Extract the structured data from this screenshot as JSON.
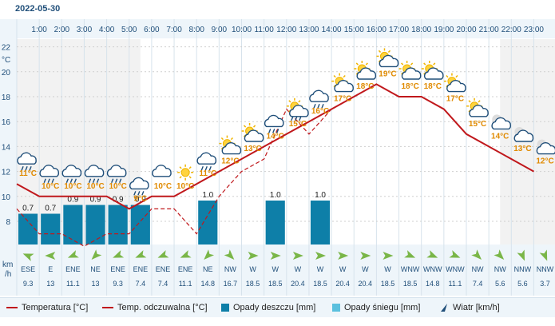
{
  "header": {
    "date": "2022-05-30"
  },
  "units": {
    "temp": "°C",
    "wind": "km\n/h"
  },
  "hours": [
    "1:00",
    "2:00",
    "3:00",
    "4:00",
    "5:00",
    "6:00",
    "7:00",
    "8:00",
    "9:00",
    "10:00",
    "11:00",
    "12:00",
    "13:00",
    "14:00",
    "15:00",
    "16:00",
    "17:00",
    "18:00",
    "19:00",
    "20:00",
    "21:00",
    "22:00",
    "23:00"
  ],
  "chart_data": {
    "type": "line",
    "x_hours": [
      0,
      1,
      2,
      3,
      4,
      5,
      6,
      7,
      8,
      9,
      10,
      11,
      12,
      13,
      14,
      15,
      16,
      17,
      18,
      19,
      20,
      21,
      22,
      23
    ],
    "y_ticks": [
      8,
      10,
      12,
      14,
      16,
      18,
      20,
      22
    ],
    "ylim": [
      6,
      24
    ],
    "series": [
      {
        "name": "Temperatura [°C]",
        "color": "#c0181c",
        "style": "solid",
        "values": [
          11,
          10,
          10,
          10,
          10,
          9,
          10,
          10,
          11,
          12,
          13,
          14,
          15,
          16,
          17,
          18,
          19,
          18,
          18,
          17,
          15,
          14,
          13,
          12
        ]
      },
      {
        "name": "Temp. odczuwalna [°C]",
        "color": "#c0181c",
        "style": "dashed",
        "values": [
          9,
          7,
          7,
          6,
          7,
          7,
          9,
          9,
          7,
          10,
          12,
          13,
          17,
          15,
          17,
          18,
          19,
          18,
          18,
          17,
          15,
          14,
          13,
          12
        ]
      },
      {
        "name": "Opady deszczu [mm]",
        "color": "#0e7fa8",
        "type": "bar",
        "values": [
          0.7,
          0.7,
          0.9,
          0.9,
          0.9,
          0.9,
          0,
          0,
          1.0,
          0,
          0,
          1.0,
          0,
          1.0,
          0,
          0,
          0,
          0,
          0,
          0,
          0,
          0,
          0,
          0
        ]
      },
      {
        "name": "Opady śniegu [mm]",
        "color": "#5bc0de",
        "type": "bar",
        "values": [
          0,
          0,
          0,
          0,
          0,
          0,
          0,
          0,
          0,
          0,
          0,
          0,
          0,
          0,
          0,
          0,
          0,
          0,
          0,
          0,
          0,
          0,
          0,
          0
        ]
      }
    ],
    "rain_labels": [
      "0.7",
      "0.7",
      "0.9",
      "0.9",
      "0.9",
      "0.9",
      "",
      "",
      "1.0",
      "",
      "",
      "1.0",
      "",
      "1.0",
      "",
      "",
      "",
      "",
      "",
      "",
      "",
      "",
      "",
      ""
    ],
    "temp_labels": [
      "11°C",
      "10°C",
      "10°C",
      "10°C",
      "10°C",
      "9°C",
      "10°C",
      "10°C",
      "11°C",
      "12°C",
      "13°C",
      "14°C",
      "15°C",
      "16°C",
      "17°C",
      "18°C",
      "19°C",
      "18°C",
      "18°C",
      "17°C",
      "15°C",
      "14°C",
      "13°C",
      "12°C"
    ],
    "icons": [
      "rain-cloud",
      "rain-cloud",
      "rain-cloud",
      "rain-cloud",
      "rain-cloud",
      "rain-cloud",
      "cloud",
      "sun",
      "rain-cloud",
      "sun-cloud",
      "sun-cloud",
      "rain-cloud",
      "sun-rain",
      "rain-cloud",
      "sun-cloud",
      "sun-cloud",
      "sun-cloud",
      "sun-cloud",
      "sun-cloud",
      "sun-cloud",
      "sun-cloud",
      "moon-cloud",
      "moon-cloud",
      "moon-cloud"
    ],
    "wind_dirs": [
      "ESE",
      "E",
      "ENE",
      "NE",
      "ENE",
      "ENE",
      "ENE",
      "ENE",
      "NE",
      "NW",
      "W",
      "W",
      "W",
      "W",
      "W",
      "W",
      "W",
      "WNW",
      "WNW",
      "WNW",
      "NW",
      "NW",
      "NNW",
      "NNW"
    ],
    "wind_speeds": [
      "9.3",
      "13",
      "11.1",
      "13",
      "9.3",
      "7.4",
      "7.4",
      "11.1",
      "14.8",
      "16.7",
      "18.5",
      "18.5",
      "20.4",
      "18.5",
      "20.4",
      "20.4",
      "18.5",
      "18.5",
      "14.8",
      "11.1",
      "7.4",
      "5.6",
      "5.6",
      "3.7"
    ]
  },
  "legend": [
    {
      "label": "Temperatura [°C]",
      "kind": "line"
    },
    {
      "label": "Temp. odczuwalna [°C]",
      "kind": "line"
    },
    {
      "label": "Opady deszczu [mm]",
      "kind": "box"
    },
    {
      "label": "Opady śniegu [mm]",
      "kind": "box"
    },
    {
      "label": "Wiatr [km/h]",
      "kind": "arrow"
    }
  ],
  "colors": {
    "temp": "#c0181c",
    "rain": "#0e7fa8",
    "snow": "#5bc0de",
    "wind_arrow": "#7ab648",
    "label_orange": "#e08a00",
    "axis_bg": "#eef5fa"
  }
}
